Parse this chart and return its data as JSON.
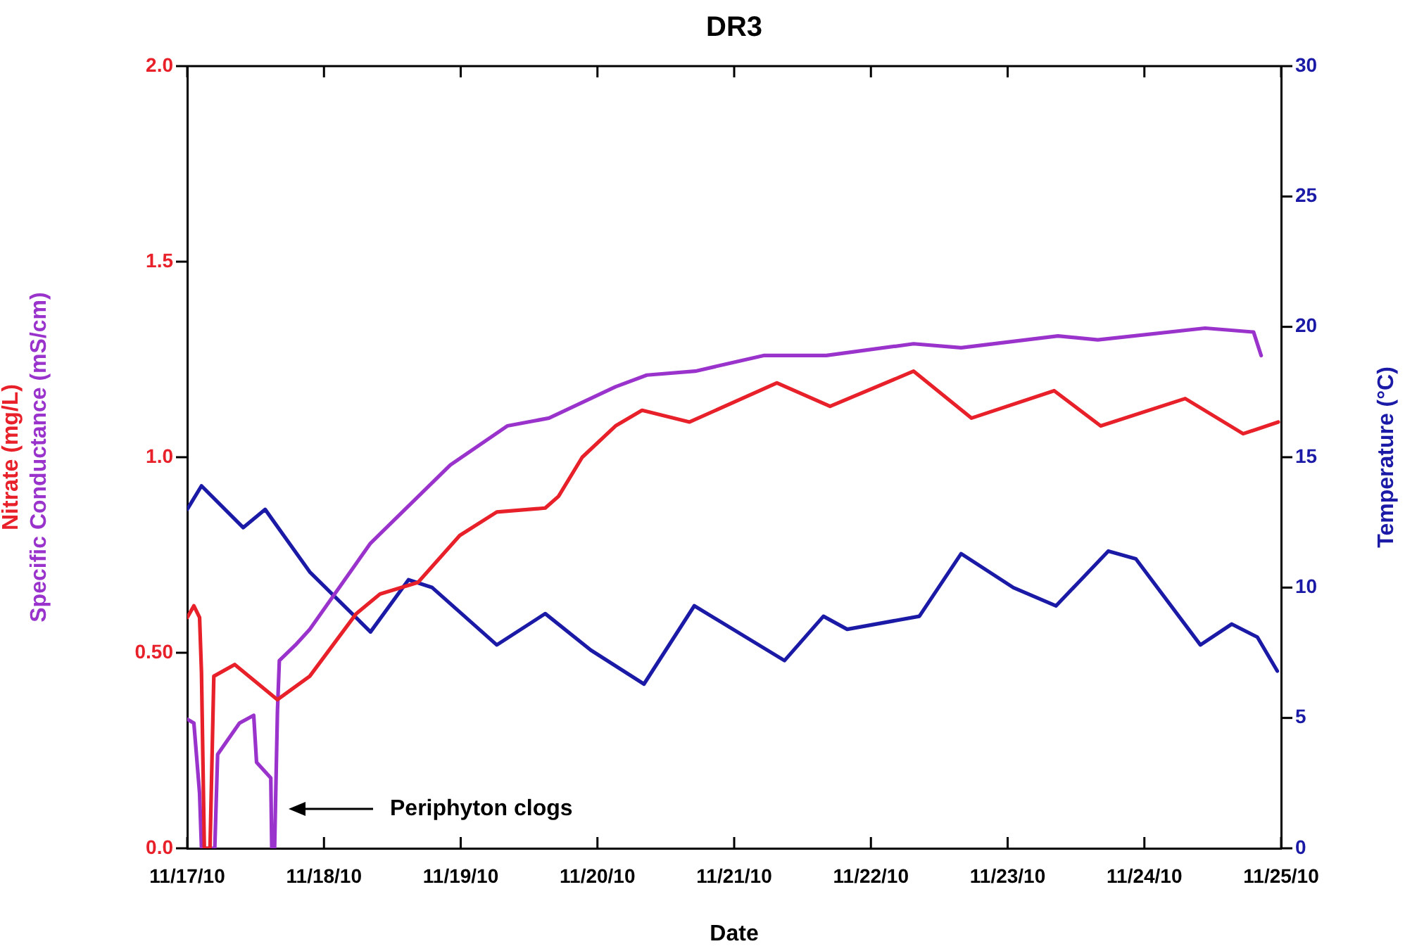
{
  "chart_data": {
    "type": "line",
    "title": "DR3",
    "xlabel": "Date",
    "ylabel": "Nitrate (mg/L)\nSpecific Conductance (mS/cm)",
    "y2label": "Temperature (°C)",
    "xlim": [
      "--11-17",
      "--11-25"
    ],
    "xticks": [
      {
        "value": "--11-17",
        "label": "11/17/10"
      },
      {
        "value": "--11-18",
        "label": "11/18/10"
      },
      {
        "value": "--11-19",
        "label": "11/19/10"
      },
      {
        "value": "--11-20",
        "label": "11/20/10"
      },
      {
        "value": "--11-21",
        "label": "11/21/10"
      },
      {
        "value": "--11-22",
        "label": "11/22/10"
      },
      {
        "value": "--11-23",
        "label": "11/23/10"
      },
      {
        "value": "--11-24",
        "label": "11/24/10"
      },
      {
        "value": "--11-25",
        "label": "11/25/10"
      }
    ],
    "ylim": [
      0,
      2
    ],
    "yticks": [
      {
        "value": 0,
        "label": "0.0"
      },
      {
        "value": 0.5,
        "label": "0.50"
      },
      {
        "value": 1,
        "label": "1.0"
      },
      {
        "value": 1.5,
        "label": "1.5"
      },
      {
        "value": 2,
        "label": "2.0"
      }
    ],
    "y2lim": [
      0,
      30
    ],
    "y2ticks": [
      0,
      5,
      10,
      15,
      20,
      25,
      30
    ],
    "grid": false,
    "legend": false,
    "annotations": [
      "Periphyton clogs"
    ],
    "series": [
      {
        "color": "#e8202a",
        "x": [
          "--11-17T00:00",
          "--11-17T01:10",
          "--11-17T02:10",
          "--11-17T02:30",
          "--11-17T03:00",
          "--11-17T04:00",
          "--11-17T04:40",
          "--11-17T08:20",
          "--11-17T15:50",
          "--11-17T21:30",
          "--11-18T05:40",
          "--11-18T09:50",
          "--11-18T16:30",
          "--11-18T23:50",
          "--11-19T06:20",
          "--11-19T14:50",
          "--11-19T17:10",
          "--11-19T21:20",
          "--11-20T03:10",
          "--11-20T07:50",
          "--11-20T16:10",
          "--11-21T07:30",
          "--11-21T16:50",
          "--11-22T07:30",
          "--11-22T17:40",
          "--11-23T08:10",
          "--11-23T16:20",
          "--11-24T07:10",
          "--11-24T17:20",
          "--11-24T23:30"
        ],
        "values": [
          0.59,
          0.62,
          0.59,
          0.45,
          0,
          0,
          0.44,
          0.47,
          0.38,
          0.44,
          0.6,
          0.65,
          0.68,
          0.8,
          0.86,
          0.87,
          0.9,
          1.0,
          1.08,
          1.12,
          1.09,
          1.19,
          1.13,
          1.22,
          1.1,
          1.17,
          1.08,
          1.15,
          1.06,
          1.09
        ]
      },
      {
        "color": "#9933cc",
        "x": [
          "--11-17T00:00",
          "--11-17T01:10",
          "--11-17T02:10",
          "--11-17T02:30",
          "--11-17T04:50",
          "--11-17T05:20",
          "--11-17T09:10",
          "--11-17T11:40",
          "--11-17T12:10",
          "--11-17T14:40",
          "--11-17T14:50",
          "--11-17T15:20",
          "--11-17T15:50",
          "--11-17T16:10",
          "--11-17T19:00",
          "--11-17T21:30",
          "--11-18T08:10",
          "--11-18T22:10",
          "--11-19T08:10",
          "--11-19T15:30",
          "--11-20T03:10",
          "--11-20T08:40",
          "--11-20T17:10",
          "--11-21T05:10",
          "--11-21T16:10",
          "--11-22T07:30",
          "--11-22T15:50",
          "--11-23T08:50",
          "--11-23T15:50",
          "--11-24T10:40",
          "--11-24T19:10",
          "--11-24T20:30"
        ],
        "values": [
          0.33,
          0.32,
          0.14,
          0,
          0,
          0.24,
          0.32,
          0.34,
          0.22,
          0.18,
          0,
          0,
          0.35,
          0.48,
          0.52,
          0.56,
          0.78,
          0.98,
          1.08,
          1.1,
          1.18,
          1.21,
          1.22,
          1.26,
          1.26,
          1.29,
          1.28,
          1.31,
          1.3,
          1.33,
          1.32,
          1.26
        ]
      },
      {
        "color": "#1a1aa6",
        "axis": "y2",
        "x": [
          "--11-17T00:00",
          "--11-17T02:30",
          "--11-17T09:50",
          "--11-17T13:40",
          "--11-17T21:30",
          "--11-18T08:10",
          "--11-18T14:50",
          "--11-18T19:00",
          "--11-19T06:20",
          "--11-19T14:50",
          "--11-19T22:50",
          "--11-20T08:10",
          "--11-20T17:00",
          "--11-21T08:50",
          "--11-21T15:40",
          "--11-21T19:50",
          "--11-22T08:30",
          "--11-22T15:50",
          "--11-23T01:00",
          "--11-23T08:30",
          "--11-23T17:40",
          "--11-23T22:30",
          "--11-24T09:50",
          "--11-24T15:20",
          "--11-24T19:50",
          "--11-24T23:20"
        ],
        "values": [
          13.0,
          13.9,
          12.3,
          13.0,
          10.6,
          8.3,
          10.3,
          10.0,
          7.8,
          9.0,
          7.6,
          6.3,
          9.3,
          7.2,
          8.9,
          8.4,
          8.9,
          11.3,
          10.0,
          9.3,
          11.4,
          11.1,
          7.8,
          8.6,
          8.1,
          6.8
        ]
      }
    ]
  }
}
